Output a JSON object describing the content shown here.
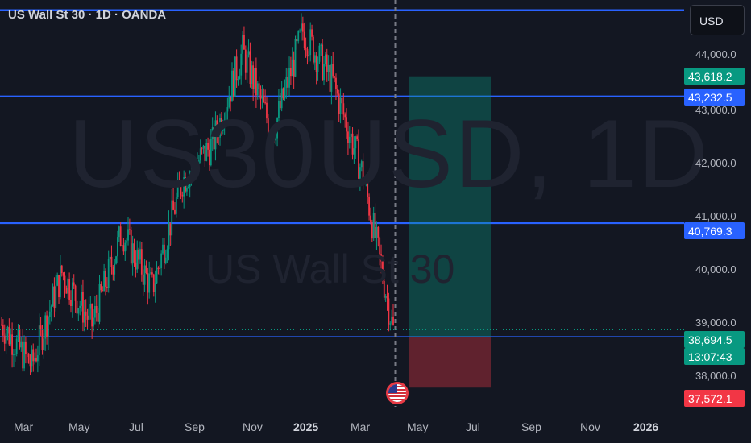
{
  "header": {
    "title": "US Wall St 30 · 1D · OANDA"
  },
  "currency_button": {
    "label": "USD"
  },
  "watermark": {
    "symbol": "US30USD, 1D",
    "name": "US Wall St 30"
  },
  "price_axis": {
    "labels": [
      "44,000.0",
      "43,000.0",
      "42,000.0",
      "41,000.0",
      "40,000.0",
      "39,000.0",
      "38,000.0"
    ]
  },
  "price_tags": {
    "take_profit": {
      "label": "43,618.2",
      "color": "#089981"
    },
    "line_upper": {
      "label": "43,232.5",
      "color": "#2962ff"
    },
    "line_mid": {
      "label": "40,769.3",
      "color": "#2962ff"
    },
    "last_price": {
      "label": "38,694.5",
      "color": "#089981"
    },
    "countdown": {
      "label": "13:07:43",
      "color": "#089981"
    },
    "stop_loss": {
      "label": "37,572.1",
      "color": "#f23645"
    }
  },
  "time_axis": {
    "labels": [
      "Mar",
      "May",
      "Jul",
      "Sep",
      "Nov",
      "2025",
      "Mar",
      "May",
      "Jul",
      "Sep",
      "Nov",
      "2026"
    ]
  },
  "chart_data": {
    "type": "candlestick",
    "symbol": "US30USD",
    "timeframe": "1D",
    "series": [
      {
        "date": "2024-03",
        "close": 38800
      },
      {
        "date": "2024-04",
        "close": 38000
      },
      {
        "date": "2024-05",
        "close": 39800
      },
      {
        "date": "2024-06",
        "close": 38800
      },
      {
        "date": "2024-07",
        "close": 40600
      },
      {
        "date": "2024-08",
        "close": 39500
      },
      {
        "date": "2024-09",
        "close": 41600
      },
      {
        "date": "2024-10",
        "close": 42300
      },
      {
        "date": "2024-11",
        "close": 44100
      },
      {
        "date": "2024-12",
        "close": 42500
      },
      {
        "date": "2025-01",
        "close": 44500
      },
      {
        "date": "2025-02",
        "close": 43500
      },
      {
        "date": "2025-03",
        "close": 41700
      },
      {
        "date": "2025-04",
        "close": 38694.5
      }
    ],
    "horizontal_lines": [
      44900,
      43232.5,
      40769.3,
      38560
    ],
    "position": {
      "type": "long",
      "entry": 38560,
      "take_profit": 43618.2,
      "stop_loss": 37572.1
    },
    "last_price": 38694.5,
    "y_range": [
      37200,
      45100
    ],
    "grid": false
  }
}
